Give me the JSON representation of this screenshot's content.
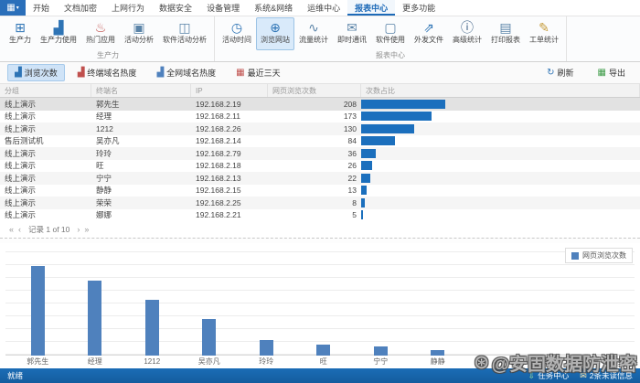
{
  "menu": {
    "app_button_glyph": "▦",
    "tabs": [
      {
        "label": "开始",
        "active": false
      },
      {
        "label": "文档加密",
        "active": false
      },
      {
        "label": "上网行为",
        "active": false
      },
      {
        "label": "数据安全",
        "active": false
      },
      {
        "label": "设备管理",
        "active": false
      },
      {
        "label": "系统&网络",
        "active": false
      },
      {
        "label": "运维中心",
        "active": false
      },
      {
        "label": "报表中心",
        "active": true
      },
      {
        "label": "更多功能",
        "active": false
      }
    ]
  },
  "ribbon": {
    "groups": [
      {
        "label": "生产力",
        "buttons": [
          {
            "label": "生产力",
            "icon": "grid-icon",
            "glyph": "⊞",
            "color": "#2e74b5",
            "selected": false
          },
          {
            "label": "生产力使用",
            "icon": "bar-chart-icon",
            "glyph": "▟",
            "color": "#2e74b5",
            "selected": false
          },
          {
            "label": "热门应用",
            "icon": "hot-apps-icon",
            "glyph": "♨",
            "color": "#c0504d",
            "selected": false
          },
          {
            "label": "活动分析",
            "icon": "activity-window-icon",
            "glyph": "▣",
            "color": "#5b84a8",
            "selected": false
          },
          {
            "label": "软件活动分析",
            "icon": "software-activity-icon",
            "glyph": "◫",
            "color": "#5b84a8",
            "selected": false
          }
        ]
      },
      {
        "label": "报表中心",
        "buttons": [
          {
            "label": "活动时间",
            "icon": "clock-icon",
            "glyph": "◷",
            "color": "#2e74b5",
            "selected": false
          },
          {
            "label": "浏览网站",
            "icon": "globe-icon",
            "glyph": "⊕",
            "color": "#2e74b5",
            "selected": true
          },
          {
            "label": "流量统计",
            "icon": "waveform-icon",
            "glyph": "∿",
            "color": "#5b84a8",
            "selected": false
          },
          {
            "label": "即时通讯",
            "icon": "chat-bubble-icon",
            "glyph": "✉",
            "color": "#5b84a8",
            "selected": false
          },
          {
            "label": "软件使用",
            "icon": "app-window-icon",
            "glyph": "▢",
            "color": "#5b84a8",
            "selected": false
          },
          {
            "label": "外发文件",
            "icon": "outgoing-file-icon",
            "glyph": "⇗",
            "color": "#2e74b5",
            "selected": false
          },
          {
            "label": "高级统计",
            "icon": "advanced-stats-icon",
            "glyph": "ⓘ",
            "color": "#30557d",
            "selected": false
          },
          {
            "label": "打印报表",
            "icon": "printer-icon",
            "glyph": "▤",
            "color": "#5b84a8",
            "selected": false
          },
          {
            "label": "工单统计",
            "icon": "work-order-icon",
            "glyph": "✎",
            "color": "#c59b3a",
            "selected": false
          }
        ]
      }
    ]
  },
  "toolbar": {
    "buttons": [
      {
        "label": "浏览次数",
        "icon": "views-chart-icon",
        "glyph": "▟",
        "color": "#2e74b5",
        "active": true
      },
      {
        "label": "终端域名热度",
        "icon": "terminal-domain-heat-icon",
        "glyph": "▟",
        "color": "#c0504d",
        "active": false
      },
      {
        "label": "全网域名热度",
        "icon": "network-domain-heat-icon",
        "glyph": "▟",
        "color": "#4f81bd",
        "active": false
      },
      {
        "label": "最近三天",
        "icon": "calendar-icon",
        "glyph": "▦",
        "color": "#c0504d",
        "active": false
      }
    ],
    "refresh_label": "刷新",
    "refresh_glyph": "↻",
    "export_label": "导出",
    "export_glyph": "▦",
    "export_color": "#3f9c49"
  },
  "table": {
    "columns": [
      "分组",
      "终端名",
      "IP",
      "网页浏览次数",
      "次数占比"
    ],
    "max_count": 208,
    "rows": [
      {
        "group": "线上演示",
        "name": "郭先生",
        "ip": "192.168.2.19",
        "count": 208
      },
      {
        "group": "线上演示",
        "name": "经理",
        "ip": "192.168.2.11",
        "count": 173
      },
      {
        "group": "线上演示",
        "name": "1212",
        "ip": "192.168.2.26",
        "count": 130
      },
      {
        "group": "售后测试机",
        "name": "吴亦凡",
        "ip": "192.168.2.14",
        "count": 84
      },
      {
        "group": "线上演示",
        "name": "玲玲",
        "ip": "192.168.2.79",
        "count": 36
      },
      {
        "group": "线上演示",
        "name": "旺",
        "ip": "192.168.2.18",
        "count": 26
      },
      {
        "group": "线上演示",
        "name": "宁宁",
        "ip": "192.168.2.13",
        "count": 22
      },
      {
        "group": "线上演示",
        "name": "静静",
        "ip": "192.168.2.15",
        "count": 13
      },
      {
        "group": "线上演示",
        "name": "荣荣",
        "ip": "192.168.2.25",
        "count": 8
      },
      {
        "group": "线上演示",
        "name": "娜娜",
        "ip": "192.168.2.21",
        "count": 5
      }
    ]
  },
  "pagination": {
    "label": "记录 1 of 10",
    "first_glyph": "«",
    "prev_glyph": "‹",
    "next_glyph": "›",
    "last_glyph": "»"
  },
  "chart_data": {
    "type": "bar",
    "title": "",
    "xlabel": "",
    "ylabel": "",
    "categories": [
      "郭先生",
      "经理",
      "1212",
      "吴亦凡",
      "玲玲",
      "旺",
      "宁宁",
      "静静"
    ],
    "values": [
      208,
      173,
      130,
      84,
      36,
      26,
      22,
      13
    ],
    "series_name": "网页浏览次数",
    "legend": "网页浏览次数",
    "legend_position": "top-right",
    "ylim": [
      0,
      220
    ],
    "grid": true,
    "bar_color": "#4f81bd"
  },
  "statusbar": {
    "left": "就绪",
    "task_center": "任务中心",
    "task_glyph": "⇩",
    "unread": "2条未读信息",
    "unread_glyph": "✉"
  },
  "watermark": {
    "logo_glyph": "⊛",
    "text": "@安固数据防泄密"
  },
  "colors": {
    "accent": "#1d6ab8",
    "table_bar": "#1b6fbd",
    "chart_bar": "#4f81bd",
    "statusbar": "#1565a8"
  }
}
